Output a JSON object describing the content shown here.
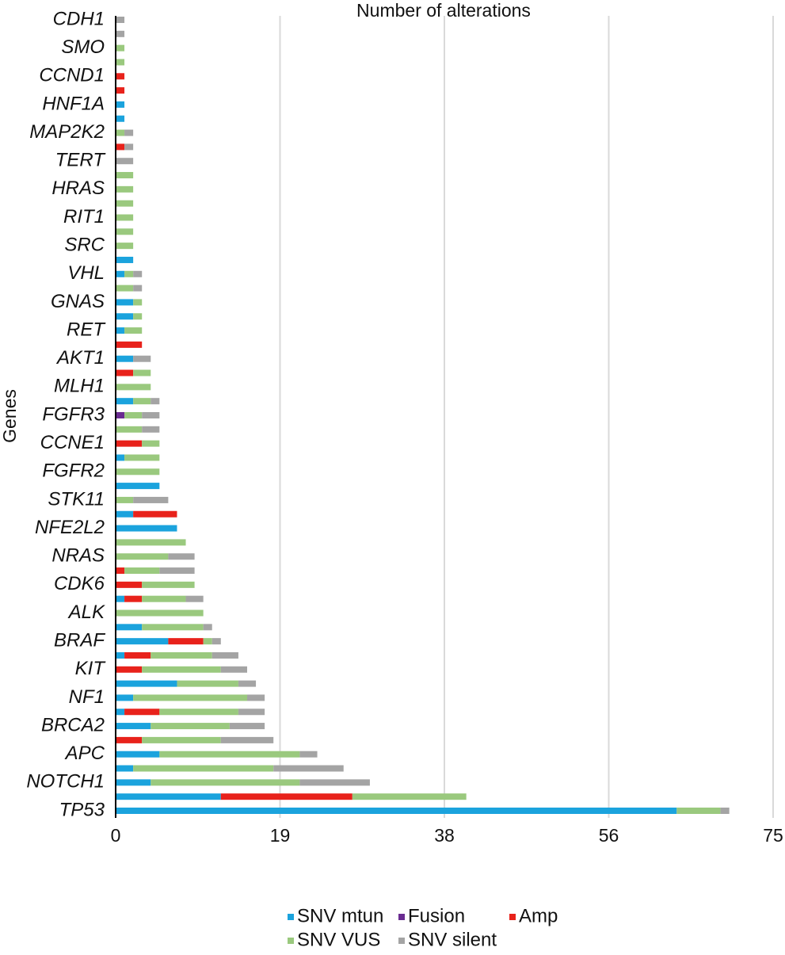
{
  "chart_data": {
    "type": "stacked-barh",
    "title": "Number of alterations",
    "ylabel": "Genes",
    "categories": [
      "CDH1",
      null,
      "SMO",
      null,
      "CCND1",
      null,
      "HNF1A",
      null,
      "MAP2K2",
      null,
      "TERT",
      null,
      "HRAS",
      null,
      "RIT1",
      null,
      "SRC",
      null,
      "VHL",
      null,
      "GNAS",
      null,
      "RET",
      null,
      "AKT1",
      null,
      "MLH1",
      null,
      "FGFR3",
      null,
      "CCNE1",
      null,
      "FGFR2",
      null,
      "STK11",
      null,
      "NFE2L2",
      null,
      "NRAS",
      null,
      "CDK6",
      null,
      "ALK",
      null,
      "BRAF",
      null,
      "KIT",
      null,
      "NF1",
      null,
      "BRCA2",
      null,
      "APC",
      null,
      "NOTCH1",
      null,
      "TP53"
    ],
    "series": [
      {
        "name": "SNV mtun",
        "color": "#1ba3dd",
        "values": [
          0,
          0,
          0,
          0,
          0,
          0,
          1,
          1,
          0,
          0,
          0,
          0,
          0,
          0,
          0,
          0,
          0,
          2,
          1,
          0,
          2,
          2,
          1,
          0,
          2,
          0,
          0,
          2,
          0,
          0,
          0,
          1,
          0,
          5,
          0,
          2,
          7,
          0,
          0,
          0,
          0,
          1,
          0,
          3,
          6,
          1,
          0,
          7,
          2,
          1,
          4,
          0,
          5,
          2,
          4,
          12,
          64
        ]
      },
      {
        "name": "Fusion",
        "color": "#6a2c91",
        "values": [
          0,
          0,
          0,
          0,
          0,
          0,
          0,
          0,
          0,
          0,
          0,
          0,
          0,
          0,
          0,
          0,
          0,
          0,
          0,
          0,
          0,
          0,
          0,
          0,
          0,
          0,
          0,
          0,
          1,
          0,
          0,
          0,
          0,
          0,
          0,
          0,
          0,
          0,
          0,
          0,
          0,
          0,
          0,
          0,
          0,
          0,
          0,
          0,
          0,
          0,
          0,
          0,
          0,
          0,
          0,
          0,
          0
        ]
      },
      {
        "name": "Amp",
        "color": "#e8221b",
        "values": [
          0,
          0,
          0,
          0,
          1,
          1,
          0,
          0,
          0,
          1,
          0,
          0,
          0,
          0,
          0,
          0,
          0,
          0,
          0,
          0,
          0,
          0,
          0,
          3,
          0,
          2,
          0,
          0,
          0,
          0,
          3,
          0,
          0,
          0,
          0,
          5,
          0,
          0,
          0,
          1,
          3,
          2,
          0,
          0,
          4,
          3,
          3,
          0,
          0,
          4,
          0,
          3,
          0,
          0,
          0,
          15,
          0
        ]
      },
      {
        "name": "SNV VUS",
        "color": "#9ac97e",
        "values": [
          0,
          0,
          1,
          1,
          0,
          0,
          0,
          0,
          1,
          0,
          0,
          2,
          2,
          2,
          2,
          2,
          2,
          0,
          1,
          2,
          1,
          1,
          2,
          0,
          0,
          2,
          4,
          2,
          2,
          3,
          2,
          4,
          5,
          0,
          2,
          0,
          0,
          8,
          6,
          4,
          6,
          5,
          10,
          7,
          1,
          7,
          9,
          7,
          13,
          9,
          9,
          9,
          16,
          16,
          17,
          13,
          5
        ]
      },
      {
        "name": "SNV silent",
        "color": "#a4a4a4",
        "values": [
          1,
          1,
          0,
          0,
          0,
          0,
          0,
          0,
          1,
          1,
          2,
          0,
          0,
          0,
          0,
          0,
          0,
          0,
          1,
          1,
          0,
          0,
          0,
          0,
          2,
          0,
          0,
          1,
          2,
          2,
          0,
          0,
          0,
          0,
          4,
          0,
          0,
          0,
          3,
          4,
          0,
          2,
          0,
          1,
          1,
          3,
          3,
          2,
          2,
          3,
          4,
          6,
          2,
          8,
          8,
          0,
          1
        ]
      }
    ],
    "xlim": [
      0,
      75
    ],
    "xticks": [
      0,
      {
        "value": 18.75,
        "label": "19"
      },
      {
        "value": 37.5,
        "label": "38"
      },
      {
        "value": 56.25,
        "label": "56"
      },
      75
    ],
    "grid": true
  }
}
